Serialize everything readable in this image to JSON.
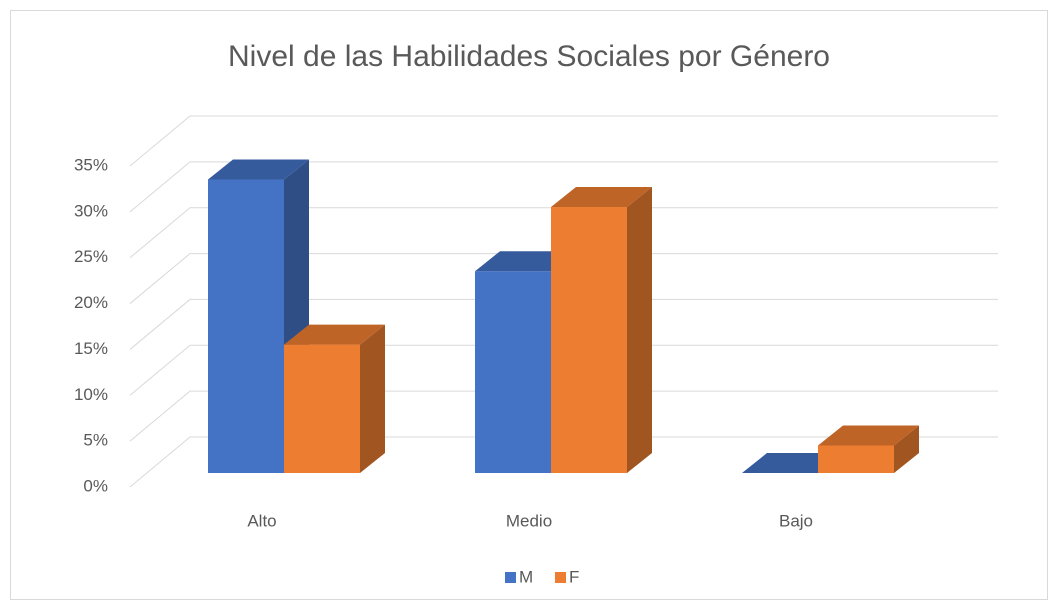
{
  "chart_data": {
    "type": "bar3d",
    "title": "Nivel de las Habilidades Sociales por Género",
    "categories": [
      "Alto",
      "Medio",
      "Bajo"
    ],
    "series": [
      {
        "name": "M",
        "color": "#4472c4",
        "values": [
          32,
          22,
          0
        ]
      },
      {
        "name": "F",
        "color": "#ed7d31",
        "values": [
          14,
          29,
          3
        ]
      }
    ],
    "ylim": [
      0,
      35
    ],
    "yticks": [
      {
        "value": 0,
        "label": "0%"
      },
      {
        "value": 5,
        "label": "5%"
      },
      {
        "value": 10,
        "label": "10%"
      },
      {
        "value": 15,
        "label": "15%"
      },
      {
        "value": 20,
        "label": "20%"
      },
      {
        "value": 25,
        "label": "25%"
      },
      {
        "value": 30,
        "label": "30%"
      },
      {
        "value": 35,
        "label": "35%"
      }
    ],
    "grid": true,
    "legend": "bottom"
  }
}
